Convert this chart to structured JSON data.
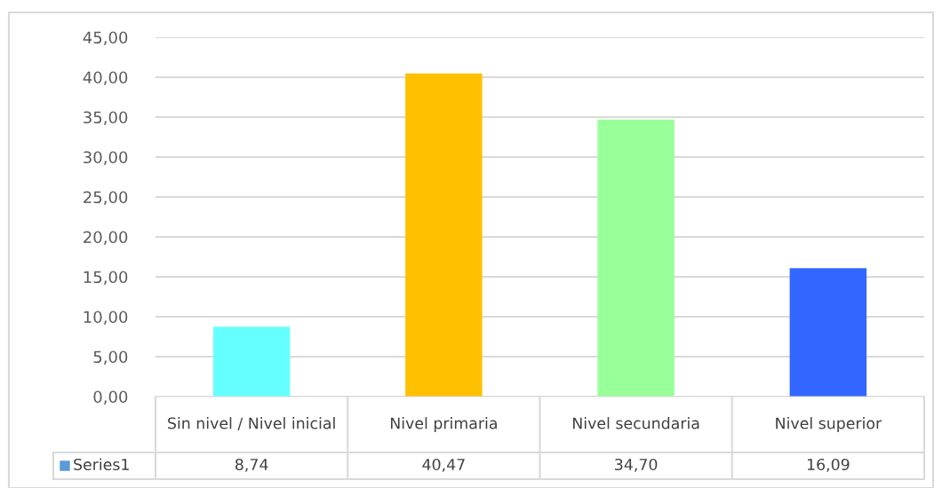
{
  "chart_data": {
    "type": "bar",
    "categories": [
      "Sin nivel / Nivel inicial",
      "Nivel primaria",
      "Nivel secundaria",
      "Nivel superior"
    ],
    "series": [
      {
        "name": "Series1",
        "color": "#5b9bd5",
        "colors": [
          "#66ffff",
          "#ffc000",
          "#99ff99",
          "#3366ff"
        ],
        "values": [
          8.74,
          40.47,
          34.7,
          16.09
        ],
        "value_labels": [
          "8,74",
          "40,47",
          "34,70",
          "16,09"
        ]
      }
    ],
    "ylim": [
      0,
      45
    ],
    "yticks": [
      {
        "value": 0,
        "label": "0,00"
      },
      {
        "value": 5,
        "label": "5,00"
      },
      {
        "value": 10,
        "label": "10,00"
      },
      {
        "value": 15,
        "label": "15,00"
      },
      {
        "value": 20,
        "label": "20,00"
      },
      {
        "value": 25,
        "label": "25,00"
      },
      {
        "value": 30,
        "label": "30,00"
      },
      {
        "value": 35,
        "label": "35,00"
      },
      {
        "value": 40,
        "label": "40,00"
      },
      {
        "value": 45,
        "label": "45,00"
      }
    ],
    "grid": "y",
    "legend": false
  }
}
